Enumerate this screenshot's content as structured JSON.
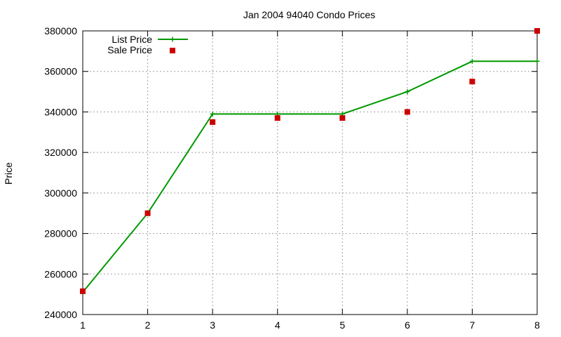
{
  "chart_data": {
    "type": "line",
    "title": "Jan 2004 94040 Condo Prices",
    "xlabel": "",
    "ylabel": "Price",
    "xlim": [
      1,
      8
    ],
    "ylim": [
      240000,
      380000
    ],
    "x_ticks": [
      1,
      2,
      3,
      4,
      5,
      6,
      7,
      8
    ],
    "y_ticks": [
      240000,
      260000,
      280000,
      300000,
      320000,
      340000,
      360000,
      380000
    ],
    "grid": true,
    "legend_position": "top-left",
    "series": [
      {
        "name": "List Price",
        "style": "line+cross",
        "color": "#009900",
        "x": [
          1,
          2,
          3,
          4,
          5,
          6,
          7,
          8
        ],
        "values": [
          251000,
          290000,
          339000,
          339000,
          339000,
          350000,
          365000,
          365000
        ]
      },
      {
        "name": "Sale Price",
        "style": "square",
        "color": "#cc0000",
        "x": [
          1,
          2,
          3,
          4,
          5,
          6,
          7,
          8
        ],
        "values": [
          251500,
          290000,
          335000,
          337000,
          337000,
          340000,
          355000,
          380000
        ]
      }
    ]
  }
}
